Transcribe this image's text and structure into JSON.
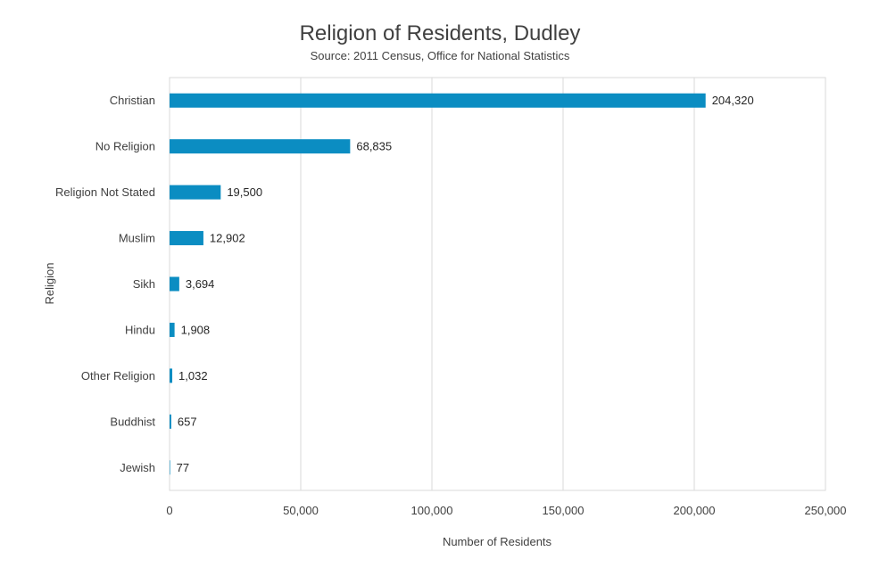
{
  "chart_data": {
    "type": "bar",
    "orientation": "horizontal",
    "title": "Religion of Residents, Dudley",
    "subtitle": "Source: 2011 Census, Office for National Statistics",
    "xlabel": "Number of Residents",
    "ylabel": "Religion",
    "categories": [
      "Christian",
      "No Religion",
      "Religion Not Stated",
      "Muslim",
      "Sikh",
      "Hindu",
      "Other Religion",
      "Buddhist",
      "Jewish"
    ],
    "values": [
      204320,
      68835,
      19500,
      12902,
      3694,
      1908,
      1032,
      657,
      77
    ],
    "value_labels": [
      "204,320",
      "68,835",
      "19,500",
      "12,902",
      "3,694",
      "1,908",
      "1,032",
      "657",
      "77"
    ],
    "xlim": [
      0,
      250000
    ],
    "xticks": [
      0,
      50000,
      100000,
      150000,
      200000,
      250000
    ],
    "xtick_labels": [
      "0",
      "50,000",
      "100,000",
      "150,000",
      "200,000",
      "250,000"
    ],
    "grid": "vertical",
    "bar_color": "#0B8DC2",
    "gridline_color": "#D9D9D9",
    "legend": "none"
  }
}
